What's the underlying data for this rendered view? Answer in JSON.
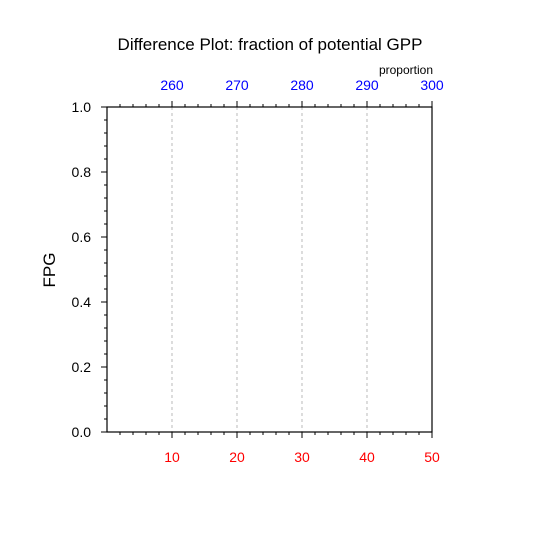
{
  "chart_data": {
    "type": "line",
    "title": "Difference Plot: fraction of potential GPP",
    "ylabel": "FPG",
    "xlabel": "",
    "top_axis_label": "proportion",
    "xlim": [
      0,
      50
    ],
    "ylim": [
      0,
      1
    ],
    "bottom_ticks": [
      10,
      20,
      30,
      40,
      50
    ],
    "bottom_tick_labels": [
      "10",
      "20",
      "30",
      "40",
      "50"
    ],
    "top_ticks": [
      10,
      20,
      30,
      40,
      50
    ],
    "top_tick_labels": [
      "260",
      "270",
      "280",
      "290",
      "300"
    ],
    "y_ticks": [
      0,
      0.2,
      0.4,
      0.6,
      0.8,
      1.0
    ],
    "y_tick_labels": [
      "0.0",
      "0.2",
      "0.4",
      "0.6",
      "0.8",
      "1.0"
    ],
    "vertical_gridlines_at": [
      10,
      20,
      30,
      40
    ],
    "grid": "dashed vertical",
    "series": [],
    "colors": {
      "bottom_tick_labels": "#ff0000",
      "top_tick_labels": "#0000ff",
      "axes": "#000000",
      "grid": "#aaaaaa"
    }
  }
}
